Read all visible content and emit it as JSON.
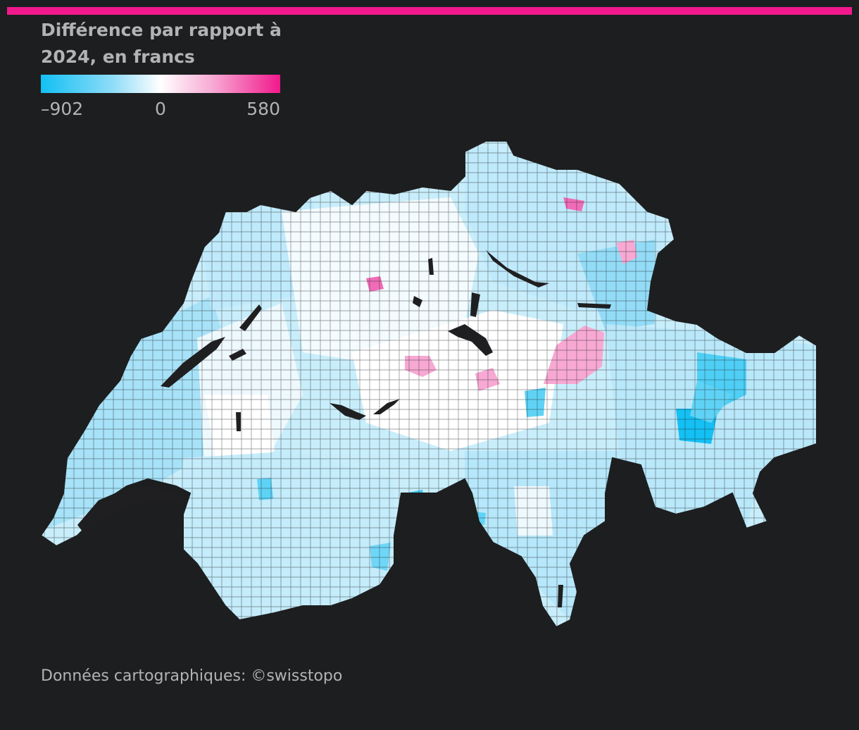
{
  "legend": {
    "title_line1": "Différence par rapport à",
    "title_line2": "2024, en francs",
    "min_label": "–902",
    "mid_label": "0",
    "max_label": "580",
    "colors": {
      "min": "#12c0f4",
      "low": "#bfeafb",
      "mid": "#ffffff",
      "high": "#f7a9d3",
      "max": "#f1198c"
    }
  },
  "accent_color": "#f1198c",
  "background_color": "#1d1e20",
  "lake_color": "#1f1f21",
  "source": "Données cartographiques: ©swisstopo"
}
